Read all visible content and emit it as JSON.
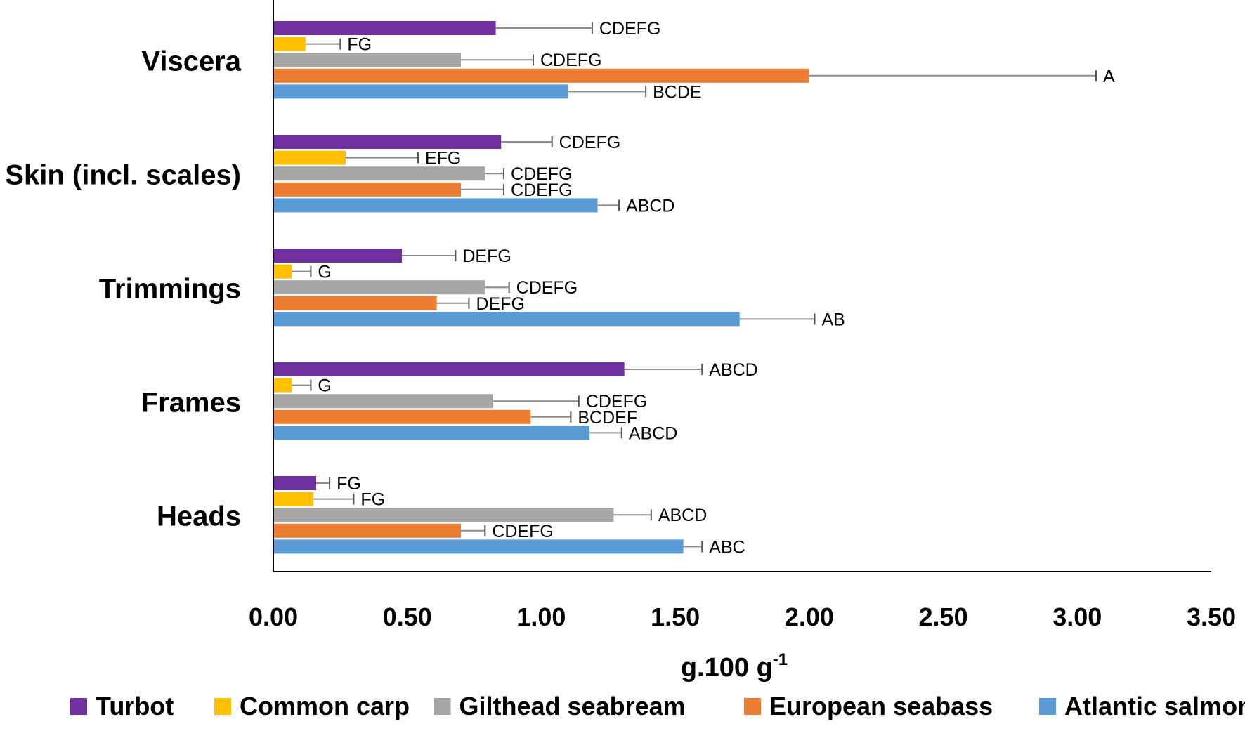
{
  "chart_data": {
    "type": "bar",
    "orientation": "horizontal",
    "categories": [
      "Viscera",
      "Skin (incl. scales)",
      "Trimmings",
      "Frames",
      "Heads"
    ],
    "xlabel": "g.100 g",
    "xlabel_superscript": "-1",
    "xlim": [
      0,
      3.5
    ],
    "xticks": [
      "0.00",
      "0.50",
      "1.00",
      "1.50",
      "2.00",
      "2.50",
      "3.00",
      "3.50"
    ],
    "grid": false,
    "legend_position": "bottom",
    "series": [
      {
        "name": "Turbot",
        "color": "#7030A0",
        "values": [
          0.83,
          0.85,
          0.48,
          1.31,
          0.16
        ],
        "errors": [
          0.36,
          0.19,
          0.2,
          0.29,
          0.05
        ],
        "letters": [
          "CDEFG",
          "CDEFG",
          "DEFG",
          "ABCD",
          "FG"
        ]
      },
      {
        "name": "Common carp",
        "color": "#FFC000",
        "values": [
          0.12,
          0.27,
          0.07,
          0.07,
          0.15
        ],
        "errors": [
          0.13,
          0.27,
          0.07,
          0.07,
          0.15
        ],
        "letters": [
          "FG",
          "EFG",
          "G",
          "G",
          "FG"
        ]
      },
      {
        "name": "Gilthead seabream",
        "color": "#A5A5A5",
        "values": [
          0.7,
          0.79,
          0.79,
          0.82,
          1.27
        ],
        "errors": [
          0.27,
          0.07,
          0.09,
          0.32,
          0.14
        ],
        "letters": [
          "CDEFG",
          "CDEFG",
          "CDEFG",
          "CDEFG",
          "ABCD"
        ]
      },
      {
        "name": "European seabass",
        "color": "#ED7D31",
        "values": [
          2.0,
          0.7,
          0.61,
          0.96,
          0.7
        ],
        "errors": [
          1.07,
          0.16,
          0.12,
          0.15,
          0.09
        ],
        "letters": [
          "A",
          "CDEFG",
          "DEFG",
          "BCDEF",
          "CDEFG"
        ]
      },
      {
        "name": "Atlantic salmon",
        "color": "#5B9BD5",
        "values": [
          1.1,
          1.21,
          1.74,
          1.18,
          1.53
        ],
        "errors": [
          0.29,
          0.08,
          0.28,
          0.12,
          0.07
        ],
        "letters": [
          "BCDE",
          "ABCD",
          "AB",
          "ABCD",
          "ABC"
        ]
      }
    ]
  }
}
